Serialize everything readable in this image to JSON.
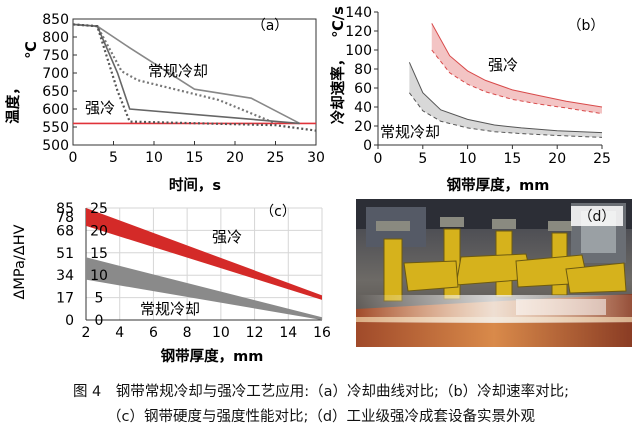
{
  "chart_data": [
    {
      "type": "line",
      "panel_label": "（a）",
      "xlabel": "时间，s",
      "ylabel_lines": [
        "温度，",
        "℃"
      ],
      "xlim": [
        0,
        30
      ],
      "ylim": [
        500,
        850
      ],
      "xticks": [
        "0",
        "5",
        "10",
        "15",
        "20",
        "25",
        "30"
      ],
      "yticks": [
        "500",
        "550",
        "600",
        "650",
        "700",
        "750",
        "800",
        "850"
      ],
      "reference_line": {
        "y": 560,
        "color": "#e0333a"
      },
      "annotations": [
        {
          "text": "常规冷却",
          "x": 11.5,
          "y": 748
        },
        {
          "text": "强冷",
          "x": 1.5,
          "y": 601
        }
      ],
      "series": [
        {
          "style": "solid",
          "color": "#888888",
          "x": [
            0,
            3,
            7,
            15,
            22,
            28
          ],
          "y": [
            835,
            830,
            770,
            655,
            630,
            560
          ]
        },
        {
          "style": "dotted",
          "color": "#777777",
          "x": [
            0,
            3,
            6,
            8,
            18,
            25
          ],
          "y": [
            835,
            830,
            705,
            680,
            625,
            560
          ]
        },
        {
          "style": "solid",
          "color": "#666666",
          "x": [
            0,
            3,
            5.5,
            7,
            28
          ],
          "y": [
            835,
            830,
            700,
            600,
            560
          ]
        },
        {
          "style": "dotted",
          "color": "#555555",
          "x": [
            0,
            3,
            5.5,
            7,
            25,
            30
          ],
          "y": [
            835,
            830,
            650,
            565,
            555,
            540
          ]
        }
      ]
    },
    {
      "type": "area",
      "panel_label": "（b）",
      "xlabel": "钢带厚度，mm",
      "ylabel_lines": [
        "冷却速率，",
        "℃/s"
      ],
      "xlim": [
        0,
        25
      ],
      "ylim": [
        0,
        140
      ],
      "xticks": [
        "0",
        "5",
        "10",
        "15",
        "20",
        "25"
      ],
      "yticks": [
        "0",
        "20",
        "40",
        "60",
        "80",
        "100",
        "120",
        "140"
      ],
      "annotations": [
        {
          "text": "强冷",
          "x": 17.5,
          "y": 82
        },
        {
          "text": "常规冷却",
          "x": 1.8,
          "y": 25
        }
      ],
      "bands": [
        {
          "color": "#f3c4c4",
          "edge": "#d84a4a",
          "x": [
            6,
            8,
            10,
            12,
            15,
            18,
            21,
            25
          ],
          "upper": [
            128,
            94,
            78,
            68,
            58,
            52,
            46,
            40
          ],
          "lower": [
            100,
            76,
            64,
            56,
            48,
            43,
            39,
            33
          ]
        },
        {
          "color": "#d8d8d8",
          "edge": "#555555",
          "x": [
            3.5,
            5,
            7,
            10,
            13,
            16,
            20,
            25
          ],
          "upper": [
            87,
            55,
            37,
            27,
            21,
            18,
            15,
            13
          ],
          "lower": [
            55,
            36,
            25,
            18,
            14,
            12,
            10,
            8
          ]
        }
      ]
    },
    {
      "type": "area",
      "panel_label": "（c）",
      "xlabel": "钢带厚度，mm",
      "ylabel": "ΔMPa/ΔHV",
      "xlim": [
        2,
        16
      ],
      "ylim": [
        0,
        25
      ],
      "xticks": [
        "2",
        "4",
        "6",
        "8",
        "10",
        "12",
        "14",
        "16"
      ],
      "yticks_left": [
        "0",
        "17",
        "34",
        "51",
        "68",
        "78",
        "85"
      ],
      "yticks_right": [
        "0",
        "5",
        "10",
        "15",
        "20",
        "25"
      ],
      "annotations": [
        {
          "text": "强冷",
          "x": 9.5,
          "y": 18.5
        },
        {
          "text": "常规冷却",
          "x": 4.3,
          "y": 2.5
        }
      ],
      "bands": [
        {
          "color": "#d42a28",
          "x": [
            2,
            16
          ],
          "upper": [
            25,
            5.5
          ],
          "lower": [
            21,
            4.5
          ]
        },
        {
          "color": "#8a8a8a",
          "x": [
            2,
            16
          ],
          "upper": [
            14,
            0.6
          ],
          "lower": [
            9,
            0
          ]
        }
      ]
    }
  ],
  "photo": {
    "label": "（d）"
  },
  "caption": {
    "line1": "图 4　钢带常规冷却与强冷工艺应用:（a）冷却曲线对比;（b）冷却速率对比;",
    "line2": "（c）钢带硬度与强度性能对比;（d）工业级强冷成套设备实景外观"
  }
}
